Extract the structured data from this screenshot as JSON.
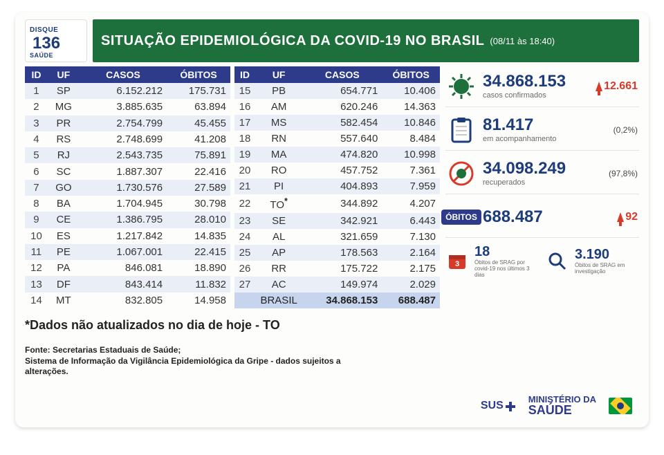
{
  "header": {
    "disque_label": "DISQUE",
    "disque_sub": "SAÚDE",
    "disque_number": "136",
    "title": "SITUAÇÃO EPIDEMIOLÓGICA DA COVID-19 NO BRASIL",
    "subtitle": "(08/11 às 18:40)",
    "title_bg": "#1d6f3b",
    "title_color": "#ffffff"
  },
  "table": {
    "type": "table",
    "header_bg": "#2e3b8b",
    "header_color": "#ffffff",
    "row_odd_bg": "#e9eef7",
    "row_even_bg": "#fdfdfb",
    "total_bg": "#c7d4ee",
    "columns": [
      "ID",
      "UF",
      "CASOS",
      "ÓBITOS"
    ],
    "left": [
      {
        "id": "1",
        "uf": "SP",
        "cases": "6.152.212",
        "deaths": "175.731"
      },
      {
        "id": "2",
        "uf": "MG",
        "cases": "3.885.635",
        "deaths": "63.894"
      },
      {
        "id": "3",
        "uf": "PR",
        "cases": "2.754.799",
        "deaths": "45.455"
      },
      {
        "id": "4",
        "uf": "RS",
        "cases": "2.748.699",
        "deaths": "41.208"
      },
      {
        "id": "5",
        "uf": "RJ",
        "cases": "2.543.735",
        "deaths": "75.891"
      },
      {
        "id": "6",
        "uf": "SC",
        "cases": "1.887.307",
        "deaths": "22.416"
      },
      {
        "id": "7",
        "uf": "GO",
        "cases": "1.730.576",
        "deaths": "27.589"
      },
      {
        "id": "8",
        "uf": "BA",
        "cases": "1.704.945",
        "deaths": "30.798"
      },
      {
        "id": "9",
        "uf": "CE",
        "cases": "1.386.795",
        "deaths": "28.010"
      },
      {
        "id": "10",
        "uf": "ES",
        "cases": "1.217.842",
        "deaths": "14.835"
      },
      {
        "id": "11",
        "uf": "PE",
        "cases": "1.067.001",
        "deaths": "22.415"
      },
      {
        "id": "12",
        "uf": "PA",
        "cases": "846.081",
        "deaths": "18.890"
      },
      {
        "id": "13",
        "uf": "DF",
        "cases": "843.414",
        "deaths": "11.832"
      },
      {
        "id": "14",
        "uf": "MT",
        "cases": "832.805",
        "deaths": "14.958"
      }
    ],
    "right": [
      {
        "id": "15",
        "uf": "PB",
        "cases": "654.771",
        "deaths": "10.406"
      },
      {
        "id": "16",
        "uf": "AM",
        "cases": "620.246",
        "deaths": "14.363"
      },
      {
        "id": "17",
        "uf": "MS",
        "cases": "582.454",
        "deaths": "10.846"
      },
      {
        "id": "18",
        "uf": "RN",
        "cases": "557.640",
        "deaths": "8.484"
      },
      {
        "id": "19",
        "uf": "MA",
        "cases": "474.820",
        "deaths": "10.998"
      },
      {
        "id": "20",
        "uf": "RO",
        "cases": "457.752",
        "deaths": "7.361"
      },
      {
        "id": "21",
        "uf": "PI",
        "cases": "404.893",
        "deaths": "7.959"
      },
      {
        "id": "22",
        "uf": "TO",
        "cases": "344.892",
        "deaths": "4.207",
        "note": "*"
      },
      {
        "id": "23",
        "uf": "SE",
        "cases": "342.921",
        "deaths": "6.443"
      },
      {
        "id": "24",
        "uf": "AL",
        "cases": "321.659",
        "deaths": "7.130"
      },
      {
        "id": "25",
        "uf": "AP",
        "cases": "178.563",
        "deaths": "2.164"
      },
      {
        "id": "26",
        "uf": "RR",
        "cases": "175.722",
        "deaths": "2.175"
      },
      {
        "id": "27",
        "uf": "AC",
        "cases": "149.974",
        "deaths": "2.029"
      }
    ],
    "total": {
      "label": "BRASIL",
      "cases": "34.868.153",
      "deaths": "688.487"
    }
  },
  "stats": {
    "color_primary": "#1d3c7a",
    "color_delta": "#d83a2a",
    "confirmed": {
      "value": "34.868.153",
      "label": "casos confirmados",
      "delta": "12.661"
    },
    "followup": {
      "value": "81.417",
      "label": "em acompanhamento",
      "pct": "(0,2%)"
    },
    "recovered": {
      "value": "34.098.249",
      "label": "recuperados",
      "pct": "(97,8%)"
    },
    "deaths": {
      "pill": "ÓBITOS",
      "value": "688.487",
      "delta": "92"
    },
    "srag3d": {
      "value": "18",
      "label": "Óbitos de SRAG por covid-19 nos últimos 3 dias"
    },
    "sraginv": {
      "value": "3.190",
      "label": "Óbitos de SRAG em investigação"
    }
  },
  "footnote": "*Dados não atualizados no dia de hoje - TO",
  "source": {
    "line1": "Fonte: Secretarias Estaduais de Saúde;",
    "line2": "Sistema de Informação da Vigilância Epidemiológica da Gripe - dados sujeitos a alterações."
  },
  "logos": {
    "sus": "SUS",
    "ministry_l1": "MINISTÉRIO DA",
    "ministry_l2": "SAÚDE"
  }
}
